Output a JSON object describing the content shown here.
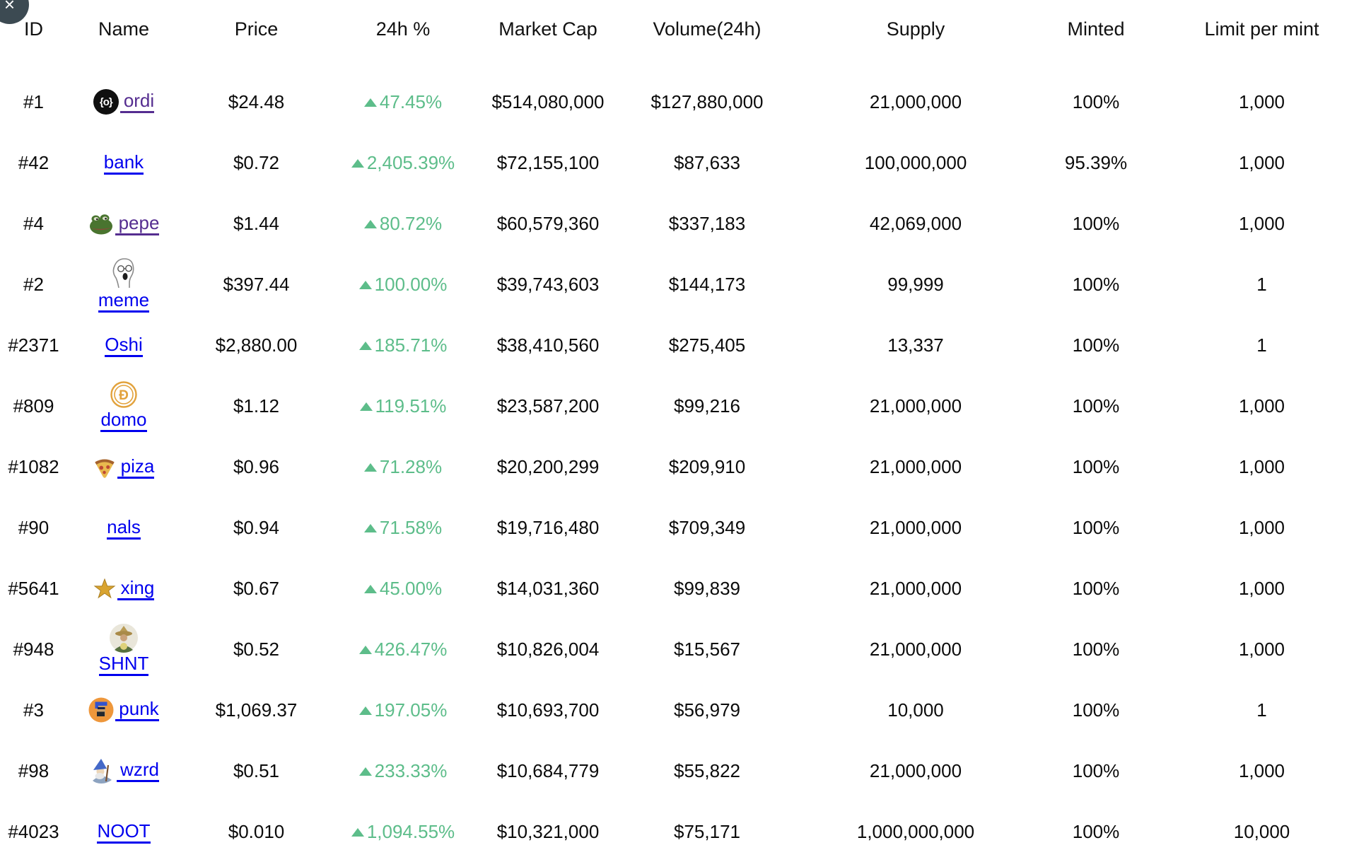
{
  "overlay": {
    "close_glyph": "×"
  },
  "colors": {
    "positive": "#5dbd8a",
    "link": "#0000EE",
    "link_visited": "#552D90",
    "text": "#0b0b0b"
  },
  "icons": {
    "ordi_glyph": "{o}"
  },
  "table": {
    "columns": [
      {
        "key": "id",
        "label": "ID"
      },
      {
        "key": "name",
        "label": "Name"
      },
      {
        "key": "price",
        "label": "Price"
      },
      {
        "key": "change",
        "label": "24h %"
      },
      {
        "key": "market_cap",
        "label": "Market Cap"
      },
      {
        "key": "volume",
        "label": "Volume(24h)"
      },
      {
        "key": "supply",
        "label": "Supply"
      },
      {
        "key": "minted",
        "label": "Minted"
      },
      {
        "key": "limit",
        "label": "Limit per mint"
      }
    ],
    "rows": [
      {
        "id": "#1",
        "name": "ordi",
        "icon": "ordi-coin-icon",
        "icon_layout": "inline",
        "visited": true,
        "price": "$24.48",
        "change": "47.45%",
        "market_cap": "$514,080,000",
        "volume": "$127,880,000",
        "supply": "21,000,000",
        "minted": "100%",
        "limit": "1,000"
      },
      {
        "id": "#42",
        "name": "bank",
        "icon": null,
        "icon_layout": "none",
        "visited": false,
        "price": "$0.72",
        "change": "2,405.39%",
        "market_cap": "$72,155,100",
        "volume": "$87,633",
        "supply": "100,000,000",
        "minted": "95.39%",
        "limit": "1,000"
      },
      {
        "id": "#4",
        "name": "pepe",
        "icon": "pepe-frog-icon",
        "icon_layout": "inline",
        "visited": true,
        "price": "$1.44",
        "change": "80.72%",
        "market_cap": "$60,579,360",
        "volume": "$337,183",
        "supply": "42,069,000",
        "minted": "100%",
        "limit": "1,000"
      },
      {
        "id": "#2",
        "name": "meme",
        "icon": "meme-wojak-icon",
        "icon_layout": "stacked",
        "visited": false,
        "price": "$397.44",
        "change": "100.00%",
        "market_cap": "$39,743,603",
        "volume": "$144,173",
        "supply": "99,999",
        "minted": "100%",
        "limit": "1"
      },
      {
        "id": "#2371",
        "name": "Oshi",
        "icon": null,
        "icon_layout": "none",
        "visited": false,
        "price": "$2,880.00",
        "change": "185.71%",
        "market_cap": "$38,410,560",
        "volume": "$275,405",
        "supply": "13,337",
        "minted": "100%",
        "limit": "1"
      },
      {
        "id": "#809",
        "name": "domo",
        "icon": "domo-coin-icon",
        "icon_layout": "stacked",
        "visited": false,
        "price": "$1.12",
        "change": "119.51%",
        "market_cap": "$23,587,200",
        "volume": "$99,216",
        "supply": "21,000,000",
        "minted": "100%",
        "limit": "1,000"
      },
      {
        "id": "#1082",
        "name": "piza",
        "icon": "pizza-slice-icon",
        "icon_layout": "inline",
        "visited": false,
        "price": "$0.96",
        "change": "71.28%",
        "market_cap": "$20,200,299",
        "volume": "$209,910",
        "supply": "21,000,000",
        "minted": "100%",
        "limit": "1,000"
      },
      {
        "id": "#90",
        "name": "nals",
        "icon": null,
        "icon_layout": "none",
        "visited": false,
        "price": "$0.94",
        "change": "71.58%",
        "market_cap": "$19,716,480",
        "volume": "$709,349",
        "supply": "21,000,000",
        "minted": "100%",
        "limit": "1,000"
      },
      {
        "id": "#5641",
        "name": "xing",
        "icon": "star-icon",
        "icon_layout": "inline",
        "visited": false,
        "price": "$0.67",
        "change": "45.00%",
        "market_cap": "$14,031,360",
        "volume": "$99,839",
        "supply": "21,000,000",
        "minted": "100%",
        "limit": "1,000"
      },
      {
        "id": "#948",
        "name": "SHNT",
        "icon": "shnt-avatar-icon",
        "icon_layout": "stacked",
        "visited": false,
        "price": "$0.52",
        "change": "426.47%",
        "market_cap": "$10,826,004",
        "volume": "$15,567",
        "supply": "21,000,000",
        "minted": "100%",
        "limit": "1,000"
      },
      {
        "id": "#3",
        "name": "punk",
        "icon": "punk-avatar-icon",
        "icon_layout": "inline",
        "visited": false,
        "price": "$1,069.37",
        "change": "197.05%",
        "market_cap": "$10,693,700",
        "volume": "$56,979",
        "supply": "10,000",
        "minted": "100%",
        "limit": "1"
      },
      {
        "id": "#98",
        "name": "wzrd",
        "icon": "wzrd-wizard-icon",
        "icon_layout": "inline",
        "visited": false,
        "price": "$0.51",
        "change": "233.33%",
        "market_cap": "$10,684,779",
        "volume": "$55,822",
        "supply": "21,000,000",
        "minted": "100%",
        "limit": "1,000"
      },
      {
        "id": "#4023",
        "name": "NOOT",
        "icon": null,
        "icon_layout": "none",
        "visited": false,
        "price": "$0.010",
        "change": "1,094.55%",
        "market_cap": "$10,321,000",
        "volume": "$75,171",
        "supply": "1,000,000,000",
        "minted": "100%",
        "limit": "10,000"
      }
    ]
  }
}
